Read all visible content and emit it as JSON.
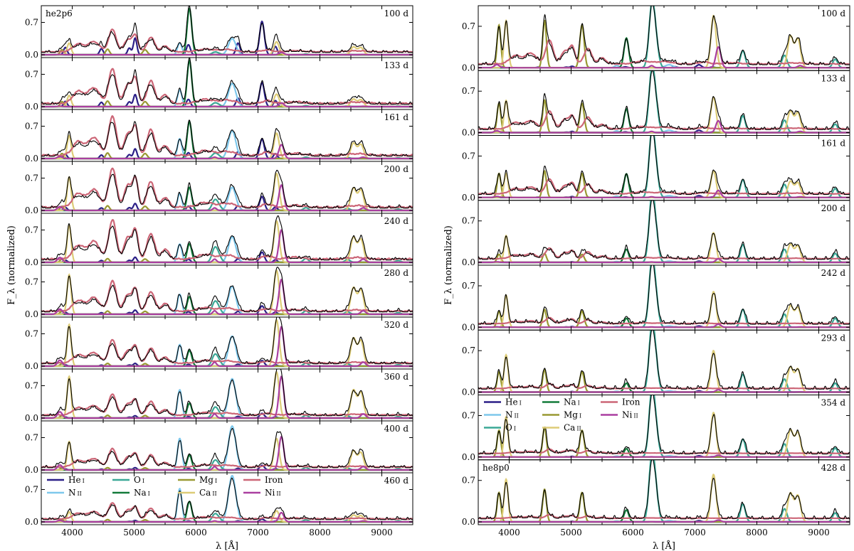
{
  "colors": {
    "He I": "#2b1f87",
    "N II": "#7ec8ec",
    "O I": "#3aa896",
    "Na I": "#137b3a",
    "Mg I": "#999932",
    "Ca II": "#ddcc77",
    "Iron": "#cc6677",
    "Ni II": "#aa3fa0",
    "observed": "#000000"
  },
  "chart_data": [
    {
      "type": "line",
      "model": "he2p6",
      "xlabel": "λ [Å]",
      "ylabel": "F_λ (normalized)",
      "xlim": [
        3500,
        9500
      ],
      "xticks": [
        "4000",
        "5000",
        "6000",
        "7000",
        "8000",
        "9000"
      ],
      "yticks": [
        "0.0",
        "0.7"
      ],
      "ylim": [
        0,
        1.0
      ],
      "legend": {
        "placement": "bottom panel, upper-left",
        "rows": [
          [
            "He I",
            "O I",
            "Mg I",
            "Iron"
          ],
          [
            "N II",
            "Na I",
            "Ca II",
            "Ni II"
          ]
        ]
      },
      "panels": [
        {
          "epoch": "100 d",
          "label": "he2p6",
          "species_peaks": {
            "He I": 0.72,
            "N II": 0.35,
            "O I": 0.05,
            "Na I": 1.0,
            "Mg I": 0.12,
            "Ca II": 0.28,
            "Iron": 0.48,
            "Ni II": 0.05
          }
        },
        {
          "epoch": "133 d",
          "species_peaks": {
            "He I": 0.52,
            "N II": 0.5,
            "O I": 0.07,
            "Na I": 1.0,
            "Mg I": 0.12,
            "Ca II": 0.27,
            "Iron": 0.75,
            "Ni II": 0.08
          }
        },
        {
          "epoch": "161 d",
          "species_peaks": {
            "He I": 0.42,
            "N II": 0.6,
            "O I": 0.1,
            "Na I": 0.8,
            "Mg I": 0.12,
            "Ca II": 0.55,
            "Iron": 0.85,
            "Ni II": 0.3
          }
        },
        {
          "epoch": "200 d",
          "species_peaks": {
            "He I": 0.3,
            "N II": 0.5,
            "O I": 0.2,
            "Na I": 0.5,
            "Mg I": 0.1,
            "Ca II": 0.8,
            "Iron": 0.85,
            "Ni II": 0.55
          }
        },
        {
          "epoch": "240 d",
          "species_peaks": {
            "He I": 0.22,
            "N II": 0.55,
            "O I": 0.28,
            "Na I": 0.4,
            "Mg I": 0.08,
            "Ca II": 0.9,
            "Iron": 0.85,
            "Ni II": 0.7
          }
        },
        {
          "epoch": "280 d",
          "species_peaks": {
            "He I": 0.18,
            "N II": 0.6,
            "O I": 0.24,
            "Na I": 0.38,
            "Mg I": 0.07,
            "Ca II": 0.95,
            "Iron": 0.65,
            "Ni II": 0.75
          }
        },
        {
          "epoch": "320 d",
          "species_peaks": {
            "He I": 0.12,
            "N II": 0.65,
            "O I": 0.22,
            "Na I": 0.34,
            "Mg I": 0.06,
            "Ca II": 1.0,
            "Iron": 0.5,
            "Ni II": 0.85
          }
        },
        {
          "epoch": "360 d",
          "species_peaks": {
            "He I": 0.1,
            "N II": 0.85,
            "O I": 0.2,
            "Na I": 0.32,
            "Mg I": 0.06,
            "Ca II": 1.0,
            "Iron": 0.45,
            "Ni II": 0.9
          }
        },
        {
          "epoch": "400 d",
          "species_peaks": {
            "He I": 0.1,
            "N II": 0.95,
            "O I": 0.18,
            "Na I": 0.32,
            "Mg I": 0.05,
            "Ca II": 0.68,
            "Iron": 0.4,
            "Ni II": 0.72
          }
        },
        {
          "epoch": "460 d",
          "species_peaks": {
            "He I": 0.06,
            "N II": 1.0,
            "O I": 0.15,
            "Na I": 0.44,
            "Mg I": 0.05,
            "Ca II": 0.24,
            "Iron": 0.35,
            "Ni II": 0.2
          }
        }
      ]
    },
    {
      "type": "line",
      "model": "he8p0",
      "xlabel": "λ [Å]",
      "ylabel": "F_λ (normalized)",
      "xlim": [
        3500,
        9500
      ],
      "xticks": [
        "4000",
        "5000",
        "6000",
        "7000",
        "8000",
        "9000"
      ],
      "yticks": [
        "0.0",
        "0.7"
      ],
      "ylim": [
        0,
        1.0
      ],
      "legend": {
        "placement": "panel 354 d, upper-left",
        "rows": [
          [
            "He I",
            "Na I",
            "Iron"
          ],
          [
            "N II",
            "Mg I",
            "Ni II"
          ],
          [
            "O I",
            "Ca II"
          ]
        ]
      },
      "panels": [
        {
          "epoch": "100 d",
          "species_peaks": {
            "He I": 0.05,
            "N II": 0.05,
            "O I": 0.95,
            "Na I": 0.5,
            "Mg I": 0.8,
            "Ca II": 0.88,
            "Iron": 0.4,
            "Ni II": 0.35
          }
        },
        {
          "epoch": "133 d",
          "species_peaks": {
            "He I": 0.04,
            "N II": 0.04,
            "O I": 0.95,
            "Na I": 0.4,
            "Mg I": 0.55,
            "Ca II": 0.6,
            "Iron": 0.3,
            "Ni II": 0.2
          }
        },
        {
          "epoch": "161 d",
          "species_peaks": {
            "He I": 0.03,
            "N II": 0.03,
            "O I": 1.0,
            "Na I": 0.4,
            "Mg I": 0.45,
            "Ca II": 0.45,
            "Iron": 0.25,
            "Ni II": 0.12
          }
        },
        {
          "epoch": "200 d",
          "species_peaks": {
            "He I": 0.02,
            "N II": 0.02,
            "O I": 1.0,
            "Na I": 0.22,
            "Mg I": 0.15,
            "Ca II": 0.5,
            "Iron": 0.18,
            "Ni II": 0.06
          }
        },
        {
          "epoch": "242 d",
          "species_peaks": {
            "He I": 0.02,
            "N II": 0.02,
            "O I": 1.0,
            "Na I": 0.15,
            "Mg I": 0.3,
            "Ca II": 0.6,
            "Iron": 0.1,
            "Ni II": 0.05
          }
        },
        {
          "epoch": "293 d",
          "species_peaks": {
            "He I": 0.02,
            "N II": 0.02,
            "O I": 1.0,
            "Na I": 0.15,
            "Mg I": 0.38,
            "Ca II": 0.7,
            "Iron": 0.08,
            "Ni II": 0.04
          }
        },
        {
          "epoch": "354 d",
          "species_peaks": {
            "He I": 0.02,
            "N II": 0.02,
            "O I": 1.0,
            "Na I": 0.14,
            "Mg I": 0.5,
            "Ca II": 0.75,
            "Iron": 0.07,
            "Ni II": 0.03
          }
        },
        {
          "epoch": "428 d",
          "label": "he8p0",
          "species_peaks": {
            "He I": 0.02,
            "N II": 0.02,
            "O I": 1.0,
            "Na I": 0.2,
            "Mg I": 0.55,
            "Ca II": 0.8,
            "Iron": 0.06,
            "Ni II": 0.03
          }
        }
      ]
    }
  ]
}
